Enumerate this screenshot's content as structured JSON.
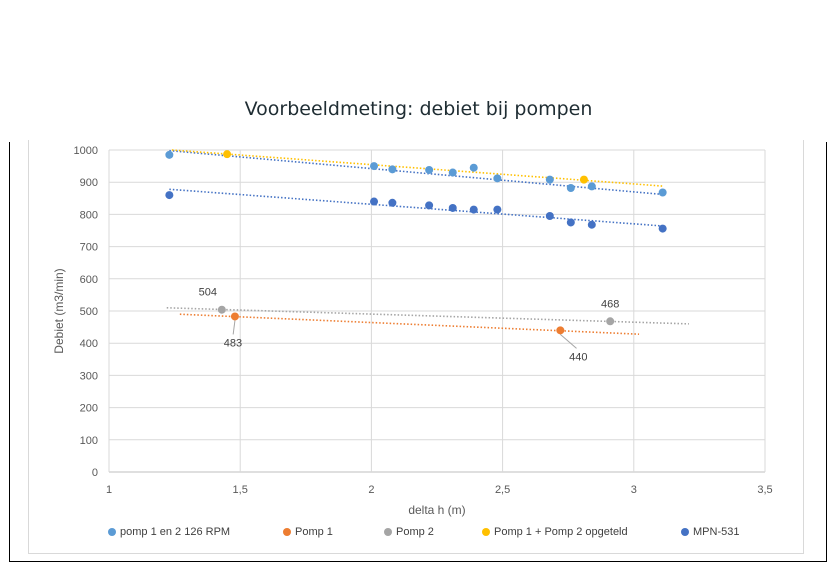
{
  "chart_data": {
    "type": "scatter",
    "title": "Voorbeeldmeting: debiet bij pompen",
    "xlabel": "delta h (m)",
    "ylabel": "Debiet (m3/min)",
    "xlim": [
      1,
      3.5
    ],
    "ylim": [
      0,
      1000
    ],
    "xticks": [
      1,
      1.5,
      2,
      2.5,
      3,
      3.5
    ],
    "xtick_labels": [
      "1",
      "1,5",
      "2",
      "2,5",
      "3",
      "3,5"
    ],
    "yticks": [
      0,
      100,
      200,
      300,
      400,
      500,
      600,
      700,
      800,
      900,
      1000
    ],
    "ytick_labels": [
      "0",
      "100",
      "200",
      "300",
      "400",
      "500",
      "600",
      "700",
      "800",
      "900",
      "1000"
    ],
    "grid": true,
    "legend_position": "bottom",
    "series": [
      {
        "name": "pomp 1 en 2 126 RPM",
        "color": "#5b9bd5",
        "points": [
          [
            1.23,
            985
          ],
          [
            2.01,
            950
          ],
          [
            2.08,
            940
          ],
          [
            2.22,
            938
          ],
          [
            2.31,
            930
          ],
          [
            2.39,
            945
          ],
          [
            2.48,
            912
          ],
          [
            2.68,
            908
          ],
          [
            2.76,
            882
          ],
          [
            2.84,
            887
          ],
          [
            3.11,
            868
          ]
        ],
        "trendline": {
          "x": [
            1.23,
            3.11
          ],
          "y": [
            998,
            862
          ],
          "color": "#4472c4"
        }
      },
      {
        "name": "Pomp 1",
        "color": "#ed7d31",
        "points": [
          [
            1.48,
            483
          ],
          [
            2.72,
            440
          ]
        ],
        "trendline": {
          "x": [
            1.27,
            3.02
          ],
          "y": [
            490,
            428
          ],
          "color": "#ed7d31"
        }
      },
      {
        "name": "Pomp 2",
        "color": "#a5a5a5",
        "points": [
          [
            1.43,
            504
          ],
          [
            2.91,
            468
          ]
        ],
        "trendline": {
          "x": [
            1.22,
            3.21
          ],
          "y": [
            510,
            460
          ],
          "color": "#a5a5a5"
        }
      },
      {
        "name": "Pomp 1 + Pomp 2 opgeteld",
        "color": "#ffc000",
        "points": [
          [
            1.45,
            987
          ],
          [
            2.81,
            908
          ]
        ],
        "trendline": {
          "x": [
            1.24,
            3.11
          ],
          "y": [
            1000,
            888
          ],
          "color": "#ffc000"
        }
      },
      {
        "name": "MPN-531",
        "color": "#4472c4",
        "points": [
          [
            1.23,
            860
          ],
          [
            2.01,
            840
          ],
          [
            2.08,
            836
          ],
          [
            2.22,
            828
          ],
          [
            2.31,
            820
          ],
          [
            2.39,
            815
          ],
          [
            2.48,
            815
          ],
          [
            2.68,
            795
          ],
          [
            2.76,
            775
          ],
          [
            2.84,
            768
          ],
          [
            3.11,
            756
          ]
        ],
        "trendline": {
          "x": [
            1.23,
            3.11
          ],
          "y": [
            878,
            764
          ],
          "color": "#4472c4"
        }
      }
    ],
    "data_labels": [
      {
        "text": "504",
        "x": 1.43,
        "y": 504
      },
      {
        "text": "483",
        "x": 1.48,
        "y": 483
      },
      {
        "text": "468",
        "x": 2.91,
        "y": 468
      },
      {
        "text": "440",
        "x": 2.72,
        "y": 440
      }
    ]
  }
}
